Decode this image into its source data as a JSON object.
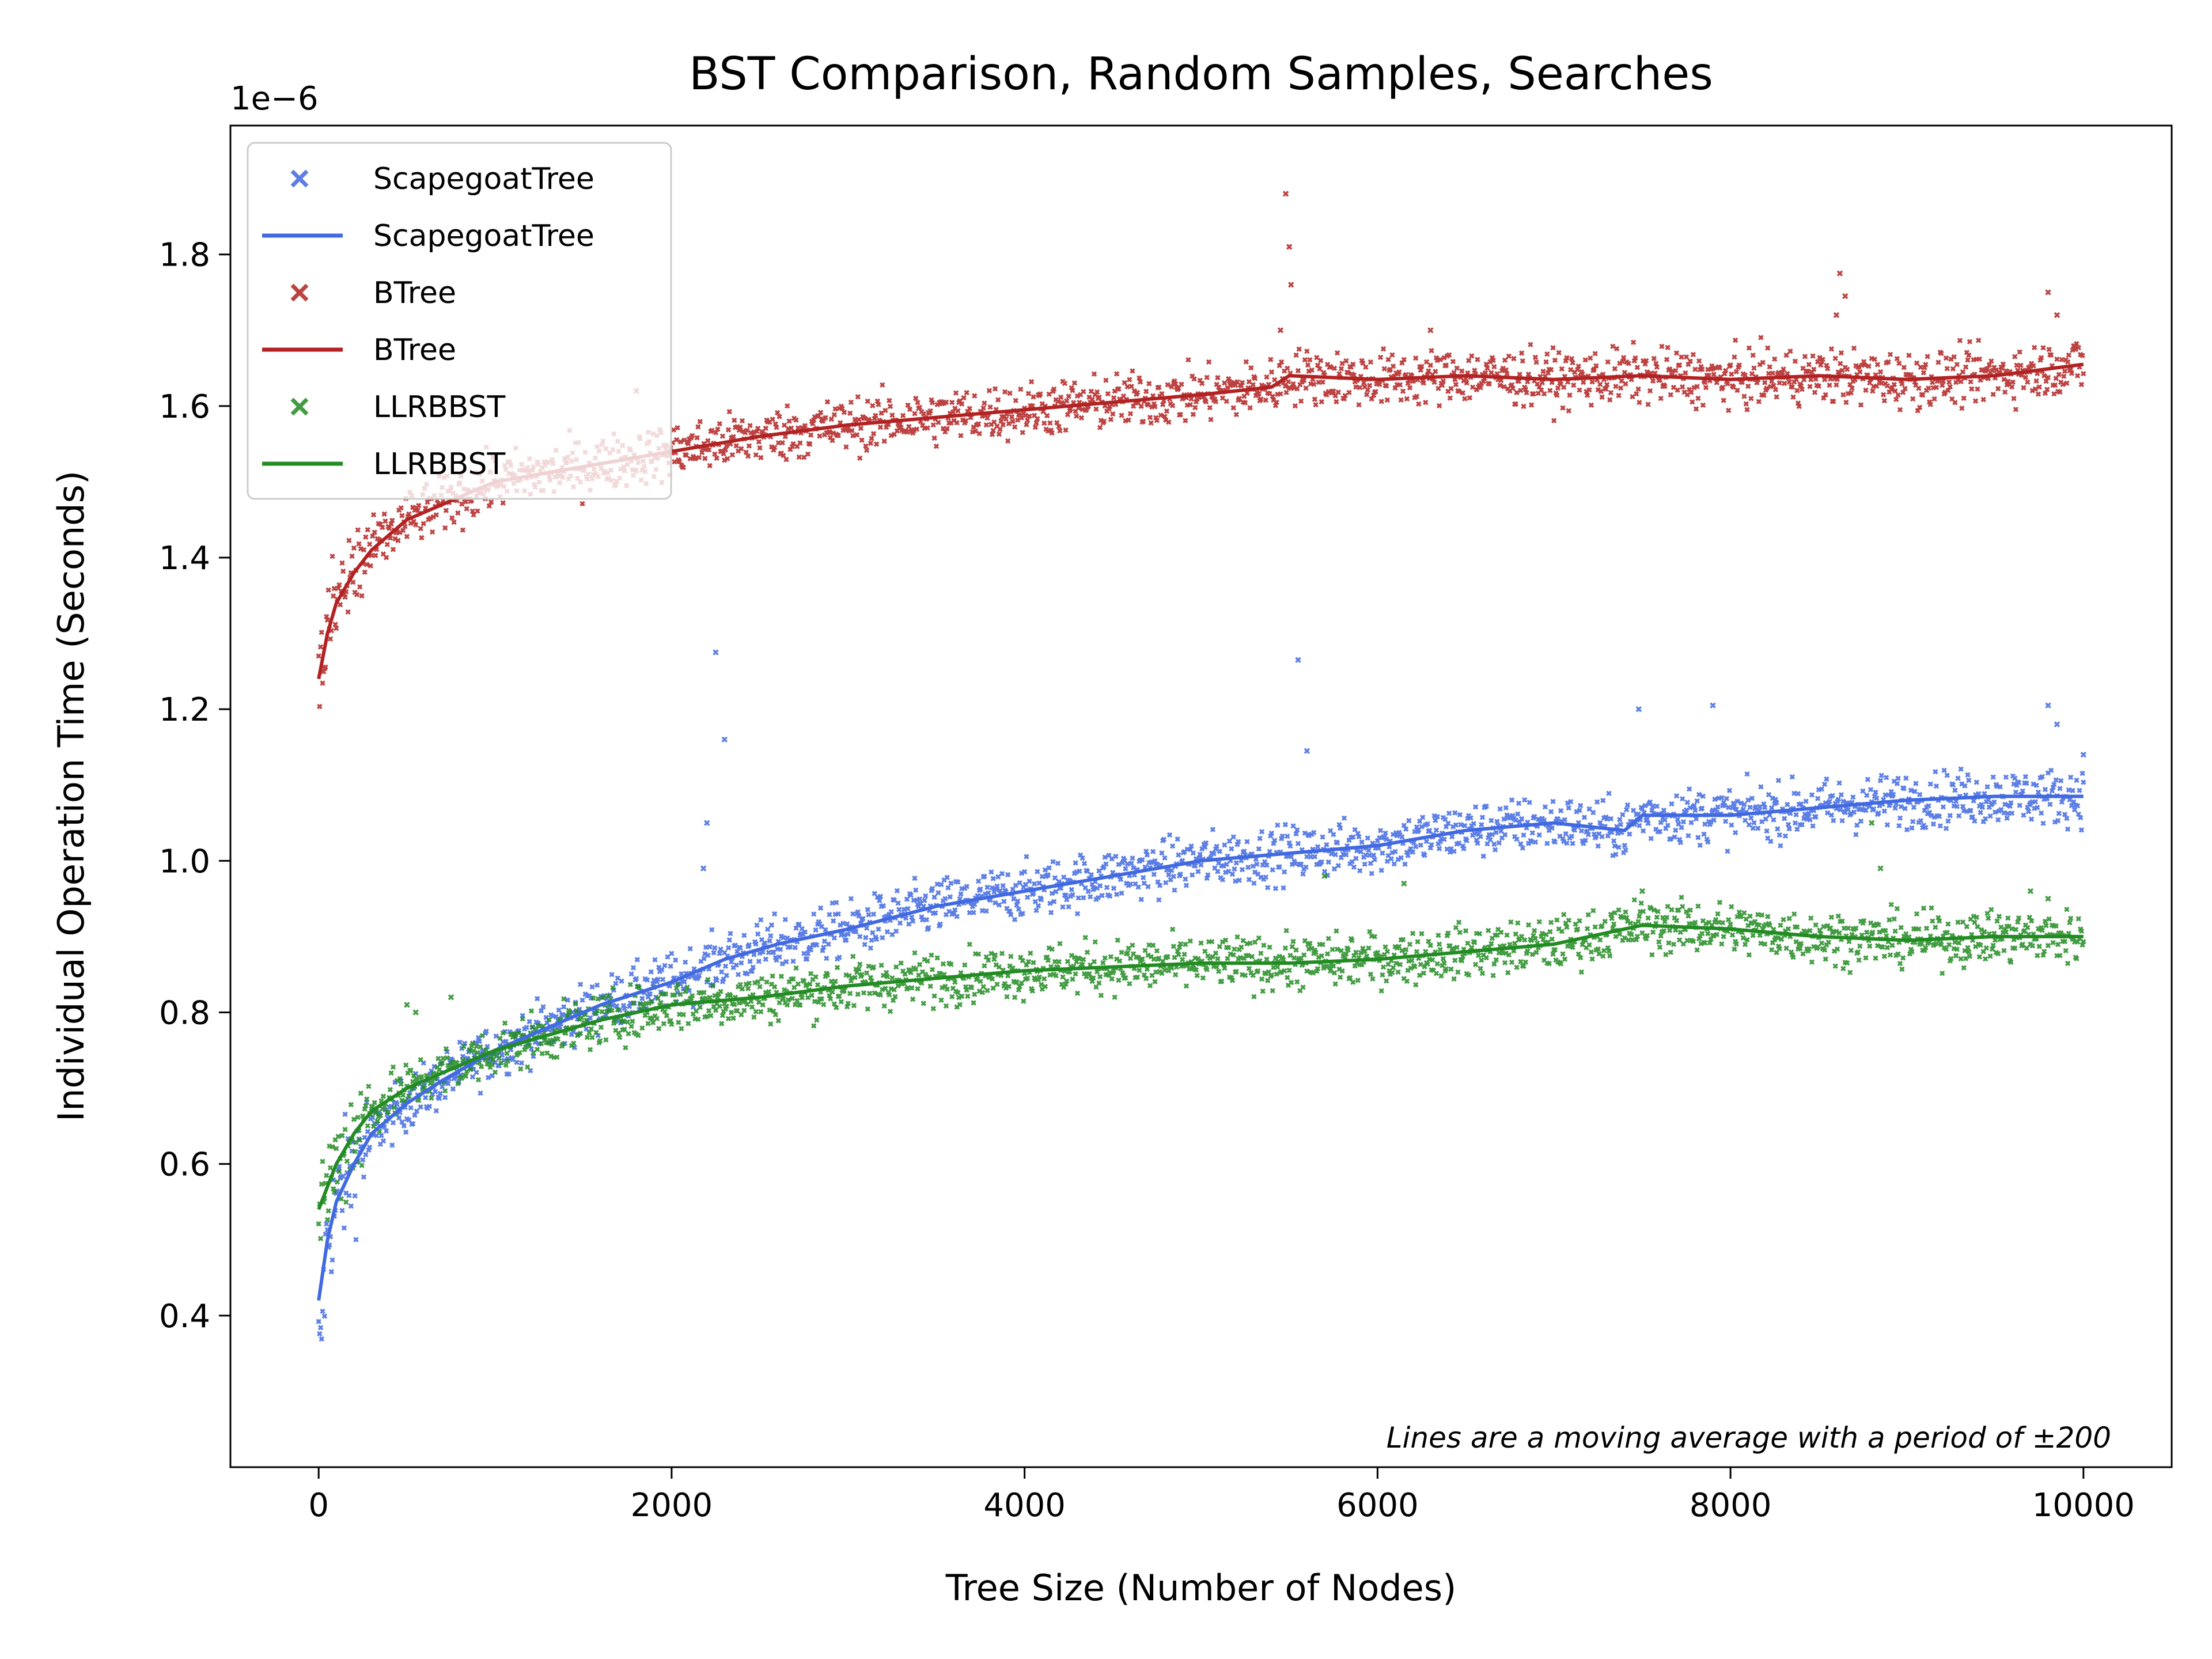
{
  "chart_data": {
    "type": "scatter",
    "title": "BST Comparison, Random Samples, Searches",
    "xlabel": "Tree Size (Number of Nodes)",
    "ylabel": "Individual Operation Time (Seconds)",
    "y_offset_label": "1e−6",
    "xlim": [
      -500,
      10500
    ],
    "ylim": [
      0.2,
      1.97
    ],
    "x_ticks": [
      0,
      2000,
      4000,
      6000,
      8000,
      10000
    ],
    "x_tick_labels": [
      "0",
      "2000",
      "4000",
      "6000",
      "8000",
      "10000"
    ],
    "y_ticks": [
      0.4,
      0.6,
      0.8,
      1.0,
      1.2,
      1.4,
      1.6,
      1.8
    ],
    "y_tick_labels": [
      "0.4",
      "0.6",
      "0.8",
      "1.0",
      "1.2",
      "1.4",
      "1.6",
      "1.8"
    ],
    "grid": false,
    "legend_position": "upper-left",
    "annotation": "Lines are a moving average with a period of ±200",
    "series": [
      {
        "name": "ScapegoatTree",
        "color": "#4169e1",
        "marker": "x",
        "x": [
          0,
          50,
          100,
          200,
          300,
          500,
          700,
          1000,
          1300,
          1600,
          2000,
          2300,
          2600,
          3000,
          3500,
          4000,
          4500,
          5000,
          5500,
          6000,
          6500,
          7000,
          7400,
          7500,
          8000,
          8500,
          9000,
          9500,
          10000
        ],
        "avg": [
          0.42,
          0.5,
          0.55,
          0.6,
          0.64,
          0.68,
          0.71,
          0.75,
          0.78,
          0.81,
          0.84,
          0.87,
          0.89,
          0.91,
          0.94,
          0.96,
          0.98,
          1.0,
          1.01,
          1.02,
          1.04,
          1.05,
          1.04,
          1.06,
          1.06,
          1.07,
          1.08,
          1.085,
          1.085
        ],
        "spread": 0.018,
        "outliers": [
          [
            2250,
            1.275
          ],
          [
            2300,
            1.16
          ],
          [
            2200,
            1.05
          ],
          [
            2180,
            0.99
          ],
          [
            5550,
            1.265
          ],
          [
            5600,
            1.145
          ],
          [
            7480,
            1.2
          ],
          [
            7900,
            1.205
          ],
          [
            9800,
            1.205
          ],
          [
            9850,
            1.18
          ],
          [
            10000,
            1.14
          ]
        ]
      },
      {
        "name": "BTree",
        "color": "#b22222",
        "marker": "x",
        "x": [
          0,
          50,
          100,
          200,
          300,
          500,
          700,
          1000,
          1500,
          2000,
          2500,
          3000,
          3500,
          4000,
          4500,
          5000,
          5400,
          5500,
          6000,
          6500,
          7000,
          7500,
          8000,
          8500,
          9000,
          9500,
          10000
        ],
        "avg": [
          1.24,
          1.3,
          1.34,
          1.38,
          1.41,
          1.45,
          1.47,
          1.5,
          1.52,
          1.54,
          1.56,
          1.575,
          1.585,
          1.595,
          1.605,
          1.615,
          1.625,
          1.64,
          1.635,
          1.64,
          1.635,
          1.64,
          1.635,
          1.64,
          1.635,
          1.64,
          1.655
        ],
        "spread": 0.018,
        "outliers": [
          [
            5480,
            1.88
          ],
          [
            5500,
            1.81
          ],
          [
            5510,
            1.76
          ],
          [
            5450,
            1.7
          ],
          [
            8620,
            1.775
          ],
          [
            8650,
            1.745
          ],
          [
            8600,
            1.72
          ],
          [
            9800,
            1.75
          ],
          [
            9850,
            1.72
          ],
          [
            6300,
            1.7
          ],
          [
            1800,
            1.62
          ]
        ]
      },
      {
        "name": "LLRBBST",
        "color": "#228b22",
        "marker": "x",
        "x": [
          0,
          50,
          100,
          200,
          300,
          500,
          700,
          1000,
          1300,
          1600,
          2000,
          2500,
          3000,
          3500,
          4000,
          4500,
          5000,
          5500,
          6000,
          6500,
          7000,
          7500,
          8000,
          8500,
          9000,
          9500,
          10000
        ],
        "avg": [
          0.54,
          0.57,
          0.6,
          0.64,
          0.67,
          0.7,
          0.72,
          0.75,
          0.77,
          0.79,
          0.81,
          0.82,
          0.835,
          0.845,
          0.855,
          0.86,
          0.865,
          0.865,
          0.87,
          0.88,
          0.89,
          0.915,
          0.91,
          0.9,
          0.895,
          0.9,
          0.9
        ],
        "spread": 0.017,
        "outliers": [
          [
            500,
            0.81
          ],
          [
            550,
            0.8
          ],
          [
            750,
            0.82
          ],
          [
            5700,
            0.98
          ],
          [
            6150,
            0.97
          ],
          [
            7500,
            0.96
          ],
          [
            8800,
            1.05
          ],
          [
            8850,
            0.99
          ],
          [
            9700,
            0.96
          ],
          [
            9800,
            0.95
          ]
        ]
      }
    ]
  },
  "legend": {
    "items": [
      {
        "label": "ScapegoatTree",
        "kind": "marker",
        "color": "#4169e1"
      },
      {
        "label": "ScapegoatTree",
        "kind": "line",
        "color": "#4169e1"
      },
      {
        "label": "BTree",
        "kind": "marker",
        "color": "#b22222"
      },
      {
        "label": "BTree",
        "kind": "line",
        "color": "#b22222"
      },
      {
        "label": "LLRBBST",
        "kind": "marker",
        "color": "#228b22"
      },
      {
        "label": "LLRBBST",
        "kind": "line",
        "color": "#228b22"
      }
    ]
  }
}
